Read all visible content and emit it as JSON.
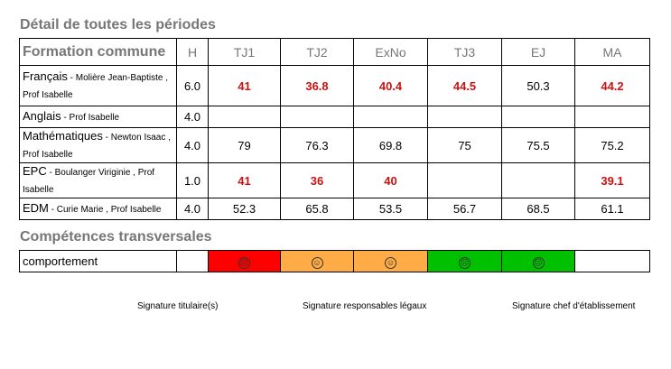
{
  "titles": {
    "detail": "Détail de toutes les périodes",
    "competences": "Compétences transversales"
  },
  "grades": {
    "header": [
      "Formation commune",
      "H",
      "TJ1",
      "TJ2",
      "ExNo",
      "TJ3",
      "EJ",
      "MA"
    ],
    "rows": [
      {
        "subject": "Français",
        "teacher": " - Molière Jean-Baptiste , Prof Isabelle",
        "hours": "6.0",
        "values": [
          {
            "v": "41",
            "low": true
          },
          {
            "v": "36.8",
            "low": true
          },
          {
            "v": "40.4",
            "low": true
          },
          {
            "v": "44.5",
            "low": true
          },
          {
            "v": "50.3",
            "low": false
          },
          {
            "v": "44.2",
            "low": true
          }
        ]
      },
      {
        "subject": "Anglais",
        "teacher": " - Prof Isabelle",
        "hours": "4.0",
        "values": [
          {
            "v": "",
            "low": false
          },
          {
            "v": "",
            "low": false
          },
          {
            "v": "",
            "low": false
          },
          {
            "v": "",
            "low": false
          },
          {
            "v": "",
            "low": false
          },
          {
            "v": "",
            "low": false
          }
        ]
      },
      {
        "subject": "Mathématiques",
        "teacher": " - Newton Isaac , Prof Isabelle",
        "hours": "4.0",
        "values": [
          {
            "v": "79",
            "low": false
          },
          {
            "v": "76.3",
            "low": false
          },
          {
            "v": "69.8",
            "low": false
          },
          {
            "v": "75",
            "low": false
          },
          {
            "v": "75.5",
            "low": false
          },
          {
            "v": "75.2",
            "low": false
          }
        ]
      },
      {
        "subject": "EPC",
        "teacher": " - Boulanger Viriginie , Prof Isabelle",
        "hours": "1.0",
        "values": [
          {
            "v": "41",
            "low": true
          },
          {
            "v": "36",
            "low": true
          },
          {
            "v": "40",
            "low": true
          },
          {
            "v": "",
            "low": false
          },
          {
            "v": "",
            "low": false
          },
          {
            "v": "39.1",
            "low": true
          }
        ]
      },
      {
        "subject": "EDM",
        "teacher": " - Curie Marie , Prof Isabelle",
        "hours": "4.0",
        "values": [
          {
            "v": "52.3",
            "low": false
          },
          {
            "v": "65.8",
            "low": false
          },
          {
            "v": "53.5",
            "low": false
          },
          {
            "v": "56.7",
            "low": false
          },
          {
            "v": "68.5",
            "low": false
          },
          {
            "v": "61.1",
            "low": false
          }
        ]
      }
    ]
  },
  "competences": {
    "label": "comportement",
    "cells": [
      {
        "color": "#ff0000",
        "icon": "sad-face-icon",
        "glyph": "☹"
      },
      {
        "color": "#ffac46",
        "icon": "neutral-face-icon",
        "glyph": "☺"
      },
      {
        "color": "#ffac46",
        "icon": "neutral-face-icon",
        "glyph": "☺"
      },
      {
        "color": "#00c000",
        "icon": "sad-face-icon",
        "glyph": "☹"
      },
      {
        "color": "#00c000",
        "icon": "sad-face-icon",
        "glyph": "☹"
      }
    ]
  },
  "signatures": {
    "titulaire": "Signature titulaire(s)",
    "legaux": "Signature responsables légaux",
    "chef": "Signature chef d'établissement"
  }
}
